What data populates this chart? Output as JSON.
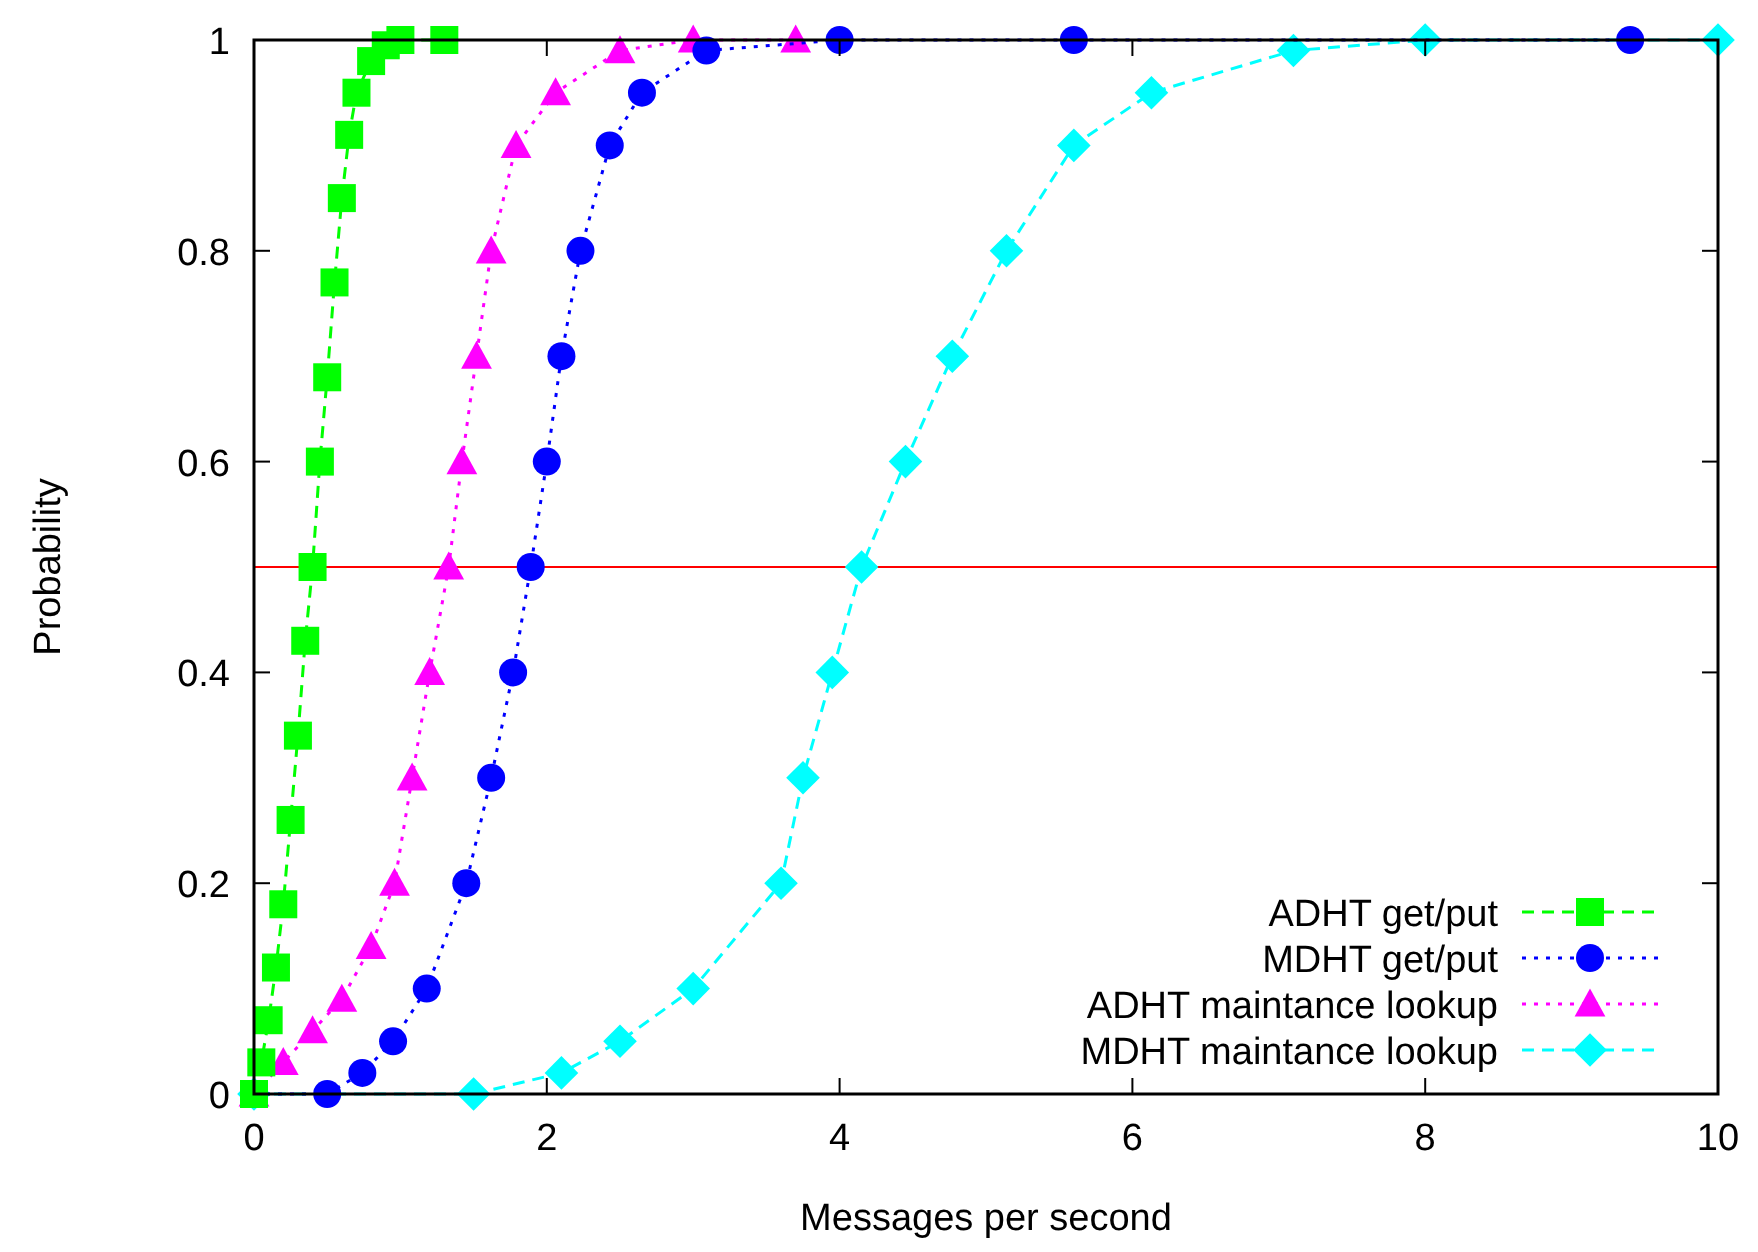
{
  "chart_data": {
    "type": "line",
    "xlabel": "Messages per second",
    "ylabel": "Probability",
    "xlim": [
      0,
      10
    ],
    "xticks": [
      0,
      2,
      4,
      6,
      8,
      10
    ],
    "ylim": [
      0,
      1
    ],
    "yticks": [
      0,
      0.2,
      0.4,
      0.6,
      0.8,
      1
    ],
    "grid": false,
    "legend": "bottom right",
    "ref_lines": [
      {
        "axis": "y",
        "value": 0.5,
        "color": "#ff0000",
        "line_style": "solid"
      }
    ],
    "series": [
      {
        "name": "ADHT get/put",
        "color": "#00ff00",
        "marker": "square",
        "line_style": "dashed",
        "x": [
          0,
          0.05,
          0.1,
          0.15,
          0.2,
          0.25,
          0.3,
          0.35,
          0.4,
          0.45,
          0.5,
          0.55,
          0.6,
          0.65,
          0.7,
          0.8,
          0.9,
          1.0,
          1.3
        ],
        "values": [
          0,
          0.03,
          0.07,
          0.12,
          0.18,
          0.26,
          0.34,
          0.43,
          0.5,
          0.6,
          0.68,
          0.77,
          0.85,
          0.91,
          0.95,
          0.98,
          0.995,
          1,
          1
        ]
      },
      {
        "name": "MDHT get/put",
        "color": "#0000ff",
        "marker": "circle",
        "line_style": "dotted",
        "x": [
          0,
          0.5,
          0.74,
          0.95,
          1.18,
          1.45,
          1.62,
          1.77,
          1.89,
          2.0,
          2.1,
          2.23,
          2.43,
          2.65,
          3.09,
          4,
          5.6,
          9.4
        ],
        "values": [
          0,
          0,
          0.02,
          0.05,
          0.1,
          0.2,
          0.3,
          0.4,
          0.5,
          0.6,
          0.7,
          0.8,
          0.9,
          0.95,
          0.99,
          1,
          1,
          1
        ]
      },
      {
        "name": "ADHT maintance lookup",
        "color": "#ff00ff",
        "marker": "triangle",
        "line_style": "dotted",
        "x": [
          0,
          0.2,
          0.4,
          0.6,
          0.8,
          0.96,
          1.08,
          1.2,
          1.33,
          1.42,
          1.52,
          1.62,
          1.79,
          2.06,
          2.5,
          3.0,
          3.7
        ],
        "values": [
          0,
          0.03,
          0.06,
          0.09,
          0.14,
          0.2,
          0.3,
          0.4,
          0.5,
          0.6,
          0.7,
          0.8,
          0.9,
          0.95,
          0.99,
          1,
          1
        ]
      },
      {
        "name": "MDHT maintance lookup",
        "color": "#00ffff",
        "marker": "diamond",
        "line_style": "dashed",
        "x": [
          0,
          1.5,
          2.1,
          2.5,
          3.0,
          3.6,
          3.75,
          3.95,
          4.15,
          4.45,
          4.77,
          5.14,
          5.6,
          6.13,
          7.1,
          8,
          10
        ],
        "values": [
          0,
          0,
          0.02,
          0.05,
          0.1,
          0.2,
          0.3,
          0.4,
          0.5,
          0.6,
          0.7,
          0.8,
          0.9,
          0.95,
          0.99,
          1,
          1
        ]
      }
    ]
  }
}
